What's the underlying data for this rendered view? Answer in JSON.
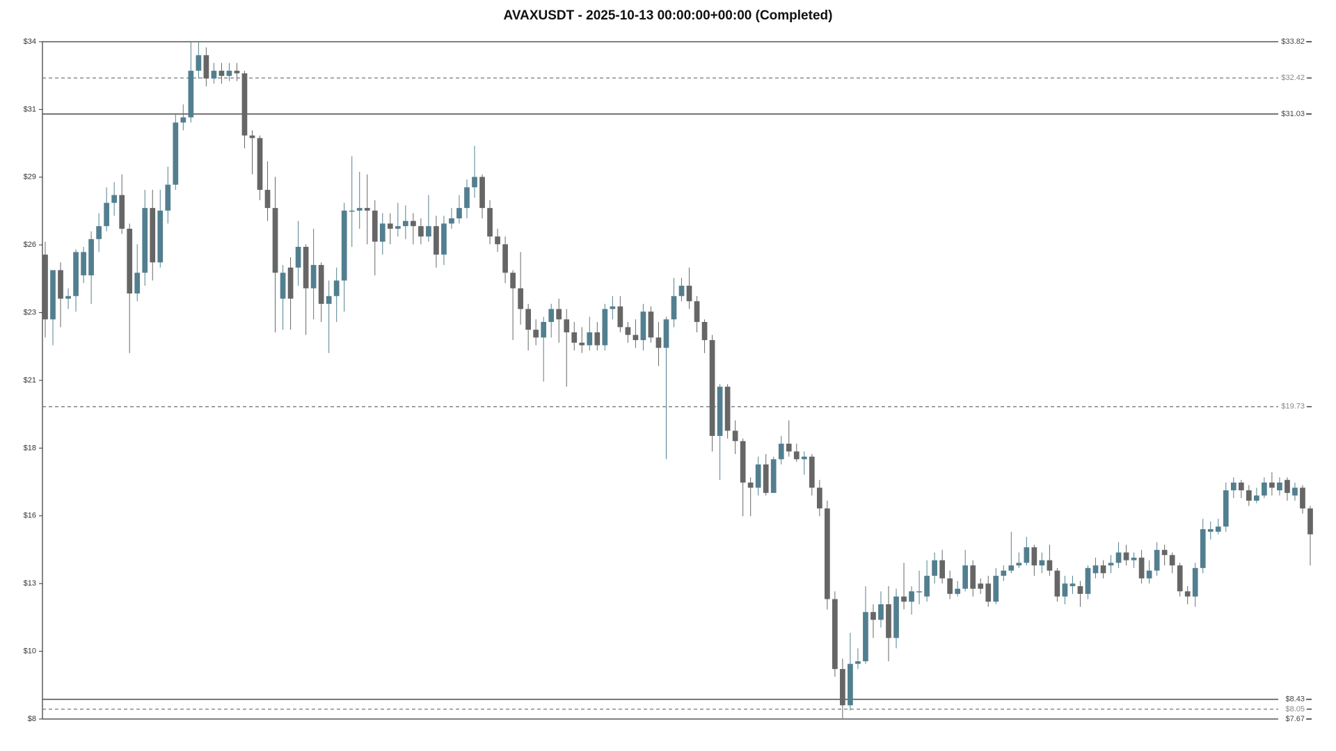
{
  "chart_data": {
    "type": "candlestick",
    "title": "AVAXUSDT - 2025-10-13 00:00:00+00:00 (Completed)",
    "ylim": [
      7.67,
      33.82
    ],
    "yticks": [
      {
        "value": 7.67,
        "label": "$8"
      },
      {
        "value": 10.285,
        "label": "$10"
      },
      {
        "value": 12.9,
        "label": "$13"
      },
      {
        "value": 15.515,
        "label": "$16"
      },
      {
        "value": 18.13,
        "label": "$18"
      },
      {
        "value": 20.745,
        "label": "$21"
      },
      {
        "value": 23.36,
        "label": "$23"
      },
      {
        "value": 25.975,
        "label": "$26"
      },
      {
        "value": 28.59,
        "label": "$29"
      },
      {
        "value": 31.205,
        "label": "$31"
      },
      {
        "value": 33.82,
        "label": "$34"
      }
    ],
    "levels": [
      {
        "value": 33.82,
        "label": "$33.82",
        "style": "solid"
      },
      {
        "value": 32.42,
        "label": "$32.42",
        "style": "dashed"
      },
      {
        "value": 31.03,
        "label": "$31.03",
        "style": "solid"
      },
      {
        "value": 19.73,
        "label": "$19.73",
        "style": "dashed"
      },
      {
        "value": 8.43,
        "label": "$8.43",
        "style": "solid"
      },
      {
        "value": 8.05,
        "label": "$8.05",
        "style": "dashed"
      },
      {
        "value": 7.67,
        "label": "$7.67",
        "style": "solid"
      }
    ],
    "up_color": "#527f8f",
    "down_color": "#666666",
    "open": [
      25.6,
      23.1,
      25.0,
      23.9,
      24.0,
      24.8,
      24.8,
      26.2,
      26.7,
      27.6,
      27.9,
      26.6,
      24.1,
      24.9,
      27.4,
      25.3,
      27.3,
      28.3,
      30.7,
      30.9,
      32.7,
      33.3,
      32.4,
      32.7,
      32.5,
      32.7,
      32.6,
      30.2,
      30.1,
      28.1,
      27.4,
      23.9,
      25.1,
      25.1,
      25.9,
      24.3,
      25.2,
      23.7,
      24.0,
      24.6,
      27.3,
      27.3,
      27.4,
      27.3,
      26.1,
      26.8,
      26.6,
      26.7,
      26.9,
      26.7,
      26.3,
      26.7,
      25.6,
      26.8,
      27.0,
      27.4,
      28.2,
      28.6,
      27.4,
      26.3,
      26.0,
      24.9,
      24.3,
      23.5,
      22.7,
      22.4,
      23.0,
      23.5,
      23.1,
      22.6,
      22.2,
      22.1,
      22.6,
      22.1,
      23.5,
      23.6,
      22.8,
      22.5,
      22.3,
      23.4,
      22.4,
      22.0,
      23.1,
      24.0,
      24.4,
      23.8,
      23.0,
      22.3,
      18.6,
      20.5,
      18.8,
      18.4,
      16.8,
      16.6,
      17.5,
      16.4,
      17.7,
      18.3,
      18.0,
      17.7,
      17.8,
      16.6,
      15.8,
      12.3,
      9.6,
      8.2,
      9.8,
      9.9,
      11.8,
      11.5,
      12.1,
      10.8,
      12.4,
      12.2,
      12.6,
      12.4,
      13.2,
      13.8,
      13.1,
      12.5,
      12.7,
      13.6,
      12.9,
      12.9,
      12.2,
      13.2,
      13.4,
      13.6,
      13.7,
      14.3,
      13.6,
      13.8,
      13.4,
      12.4,
      12.8,
      12.8,
      12.5,
      13.3,
      13.6,
      13.6,
      13.7,
      14.1,
      13.8,
      13.9,
      13.1,
      13.4,
      14.2,
      14.0,
      13.6,
      12.6,
      12.4,
      13.5,
      14.9,
      14.9,
      15.1,
      16.5,
      16.8,
      16.5,
      16.1,
      16.3,
      16.8,
      16.5,
      16.9,
      16.3,
      16.6,
      15.8
    ],
    "high": [
      26.1,
      25.0,
      25.3,
      24.3,
      25.8,
      25.9,
      26.5,
      27.2,
      28.2,
      28.4,
      28.7,
      26.8,
      26.0,
      28.1,
      28.1,
      28.1,
      29.0,
      31.0,
      31.4,
      33.8,
      33.8,
      33.6,
      33.0,
      33.0,
      33.0,
      33.0,
      32.7,
      30.4,
      30.2,
      29.2,
      28.6,
      25.2,
      25.5,
      26.9,
      26.0,
      26.6,
      25.3,
      24.6,
      25.1,
      27.6,
      29.4,
      28.8,
      28.7,
      27.7,
      27.2,
      27.2,
      27.6,
      27.5,
      27.2,
      27.0,
      27.9,
      27.1,
      27.1,
      27.4,
      27.9,
      28.5,
      29.8,
      28.7,
      27.7,
      26.6,
      26.3,
      25.0,
      25.7,
      23.7,
      23.1,
      23.2,
      23.7,
      23.9,
      23.5,
      23.0,
      22.8,
      23.2,
      23.0,
      23.7,
      24.0,
      24.0,
      23.0,
      23.1,
      23.7,
      23.6,
      23.0,
      23.2,
      24.7,
      24.7,
      25.1,
      24.0,
      23.1,
      22.5,
      20.6,
      20.6,
      19.2,
      18.5,
      17.0,
      17.8,
      17.9,
      17.8,
      18.6,
      19.2,
      18.3,
      18.0,
      17.9,
      16.9,
      16.1,
      12.6,
      10.0,
      11.0,
      10.4,
      12.8,
      12.1,
      12.6,
      12.8,
      12.7,
      13.7,
      12.8,
      13.4,
      13.8,
      14.1,
      14.2,
      13.4,
      13.0,
      14.2,
      13.8,
      13.1,
      13.2,
      13.5,
      13.6,
      14.9,
      14.1,
      14.7,
      14.4,
      14.1,
      14.4,
      13.5,
      13.2,
      13.2,
      13.0,
      13.6,
      13.9,
      13.8,
      14.0,
      14.5,
      14.4,
      14.1,
      14.2,
      13.8,
      14.5,
      14.4,
      14.1,
      13.7,
      12.8,
      13.7,
      15.4,
      15.3,
      15.4,
      16.8,
      17.0,
      16.9,
      16.7,
      16.6,
      17.0,
      17.2,
      17.0,
      17.0,
      16.8,
      16.7,
      15.9
    ],
    "low": [
      22.4,
      22.1,
      22.8,
      23.5,
      23.4,
      24.5,
      23.7,
      25.7,
      26.5,
      27.1,
      26.4,
      21.8,
      23.8,
      24.4,
      24.6,
      25.1,
      26.8,
      28.1,
      30.4,
      30.7,
      32.4,
      32.1,
      32.2,
      32.2,
      32.3,
      32.3,
      29.7,
      28.7,
      27.7,
      26.9,
      22.6,
      22.7,
      22.7,
      24.4,
      22.5,
      23.1,
      23.0,
      21.8,
      23.0,
      23.4,
      25.9,
      26.6,
      26.0,
      24.8,
      25.6,
      26.0,
      26.3,
      26.2,
      26.0,
      26.0,
      26.1,
      25.1,
      25.2,
      26.6,
      26.8,
      27.0,
      27.8,
      27.0,
      26.0,
      25.7,
      24.5,
      22.3,
      22.9,
      21.9,
      22.1,
      20.7,
      22.4,
      22.2,
      20.5,
      21.9,
      21.8,
      21.9,
      21.9,
      21.9,
      23.1,
      22.6,
      22.2,
      22.0,
      21.9,
      22.2,
      21.3,
      17.7,
      22.8,
      23.8,
      23.5,
      22.6,
      21.8,
      18.0,
      16.9,
      18.5,
      17.9,
      15.5,
      15.5,
      16.3,
      16.3,
      16.4,
      17.5,
      17.8,
      17.6,
      17.1,
      16.3,
      15.5,
      11.9,
      9.3,
      7.7,
      8.0,
      9.6,
      9.8,
      10.8,
      11.2,
      9.9,
      10.4,
      11.9,
      11.7,
      12.1,
      12.2,
      12.9,
      12.9,
      12.3,
      12.4,
      12.6,
      12.4,
      12.5,
      12.0,
      12.1,
      13.0,
      13.3,
      13.5,
      13.6,
      13.2,
      13.3,
      13.2,
      12.2,
      12.1,
      12.5,
      12.0,
      12.3,
      13.1,
      13.1,
      13.3,
      13.5,
      13.6,
      13.5,
      12.9,
      12.9,
      13.2,
      13.6,
      13.3,
      12.4,
      12.1,
      12.0,
      13.3,
      14.6,
      14.8,
      14.9,
      16.2,
      16.2,
      15.9,
      16.0,
      16.2,
      16.3,
      16.3,
      16.1,
      16.1,
      15.6,
      13.6
    ],
    "close": [
      23.1,
      25.0,
      23.9,
      24.0,
      25.7,
      25.7,
      26.2,
      26.7,
      27.6,
      27.9,
      26.6,
      24.1,
      24.9,
      27.4,
      25.3,
      27.3,
      28.3,
      30.7,
      30.9,
      32.7,
      33.3,
      32.4,
      32.7,
      32.5,
      32.7,
      32.6,
      30.2,
      30.1,
      28.1,
      27.4,
      24.9,
      24.9,
      23.9,
      25.9,
      24.3,
      25.2,
      23.7,
      24.0,
      24.6,
      27.3,
      27.3,
      27.4,
      27.3,
      26.1,
      26.8,
      26.6,
      26.7,
      26.9,
      26.7,
      26.3,
      26.7,
      25.6,
      26.8,
      27.0,
      27.4,
      28.2,
      28.6,
      27.4,
      26.3,
      26.0,
      24.9,
      24.3,
      23.5,
      22.7,
      22.4,
      23.0,
      23.5,
      23.1,
      22.6,
      22.2,
      22.1,
      22.6,
      22.1,
      23.5,
      23.6,
      22.8,
      22.5,
      22.3,
      23.4,
      22.4,
      22.0,
      23.1,
      24.0,
      24.4,
      23.8,
      23.0,
      22.3,
      18.6,
      20.5,
      18.8,
      18.4,
      16.8,
      16.6,
      17.5,
      16.4,
      17.7,
      18.3,
      18.0,
      17.7,
      17.8,
      16.6,
      15.8,
      12.3,
      9.6,
      8.2,
      9.8,
      9.9,
      11.8,
      11.5,
      12.1,
      10.8,
      12.4,
      12.2,
      12.6,
      12.6,
      13.2,
      13.8,
      13.1,
      12.5,
      12.7,
      13.6,
      12.7,
      12.7,
      12.2,
      13.2,
      13.4,
      13.6,
      13.7,
      14.3,
      13.6,
      13.8,
      13.4,
      12.4,
      12.9,
      12.9,
      12.5,
      13.5,
      13.6,
      13.3,
      13.7,
      14.1,
      13.8,
      13.9,
      13.1,
      13.4,
      14.2,
      14.0,
      13.6,
      12.6,
      12.4,
      13.5,
      15.0,
      15.0,
      15.1,
      16.5,
      16.8,
      16.5,
      16.1,
      16.3,
      16.8,
      16.6,
      16.8,
      16.4,
      16.6,
      15.8,
      14.8
    ]
  }
}
